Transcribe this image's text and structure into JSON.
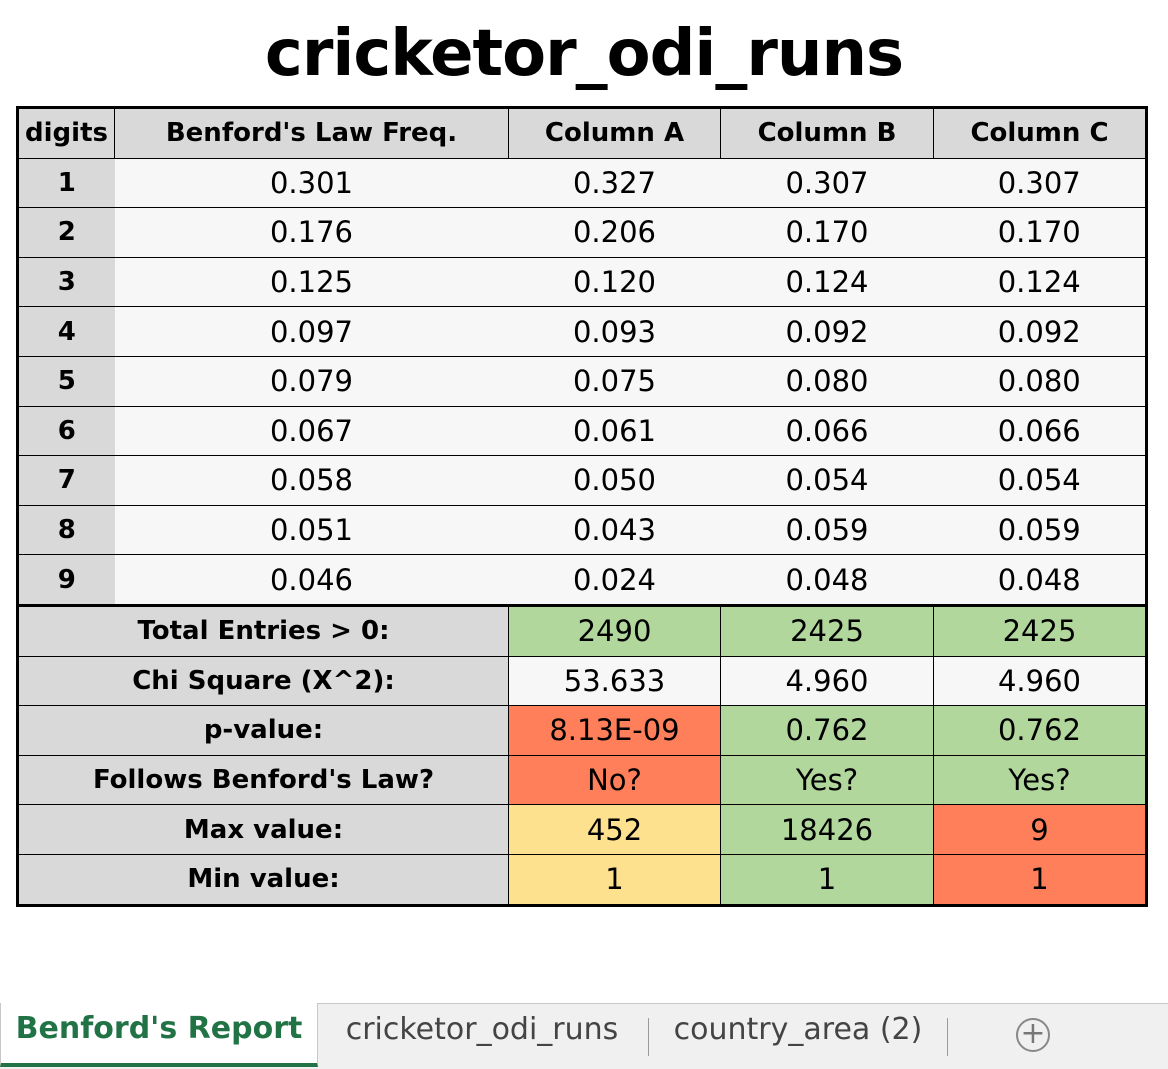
{
  "title": "cricketor_odi_runs",
  "headers": [
    "digits",
    "Benford's Law Freq.",
    "Column A",
    "Column B",
    "Column C"
  ],
  "rows": [
    {
      "digit": "1",
      "benford": "0.301",
      "a": "0.327",
      "b": "0.307",
      "c": "0.307"
    },
    {
      "digit": "2",
      "benford": "0.176",
      "a": "0.206",
      "b": "0.170",
      "c": "0.170"
    },
    {
      "digit": "3",
      "benford": "0.125",
      "a": "0.120",
      "b": "0.124",
      "c": "0.124"
    },
    {
      "digit": "4",
      "benford": "0.097",
      "a": "0.093",
      "b": "0.092",
      "c": "0.092"
    },
    {
      "digit": "5",
      "benford": "0.079",
      "a": "0.075",
      "b": "0.080",
      "c": "0.080"
    },
    {
      "digit": "6",
      "benford": "0.067",
      "a": "0.061",
      "b": "0.066",
      "c": "0.066"
    },
    {
      "digit": "7",
      "benford": "0.058",
      "a": "0.050",
      "b": "0.054",
      "c": "0.054"
    },
    {
      "digit": "8",
      "benford": "0.051",
      "a": "0.043",
      "b": "0.059",
      "c": "0.059"
    },
    {
      "digit": "9",
      "benford": "0.046",
      "a": "0.024",
      "b": "0.048",
      "c": "0.048"
    }
  ],
  "summary": [
    {
      "label": "Total Entries > 0:",
      "a": "2490",
      "b": "2425",
      "c": "2425",
      "colors": [
        "#b1d79d",
        "#b1d79d",
        "#b1d79d"
      ]
    },
    {
      "label": "Chi Square (X^2):",
      "a": "53.633",
      "b": "4.960",
      "c": "4.960",
      "colors": [
        "#f7f7f7",
        "#f7f7f7",
        "#f7f7f7"
      ]
    },
    {
      "label": "p-value:",
      "a": "8.13E-09",
      "b": "0.762",
      "c": "0.762",
      "colors": [
        "#fe7f5a",
        "#b1d79d",
        "#b1d79d"
      ]
    },
    {
      "label": "Follows Benford's Law?",
      "a": "No?",
      "b": "Yes?",
      "c": "Yes?",
      "colors": [
        "#fe7f5a",
        "#b1d79d",
        "#b1d79d"
      ]
    },
    {
      "label": "Max value:",
      "a": "452",
      "b": "18426",
      "c": "9",
      "colors": [
        "#fde18f",
        "#b1d79d",
        "#fe7f5a"
      ]
    },
    {
      "label": "Min value:",
      "a": "1",
      "b": "1",
      "c": "1",
      "colors": [
        "#fde18f",
        "#b1d79d",
        "#fe7f5a"
      ]
    }
  ],
  "tabs": [
    {
      "label": "Benford's Report",
      "active": true
    },
    {
      "label": "cricketor_odi_runs",
      "active": false
    },
    {
      "label": "country_area (2)",
      "active": false
    }
  ],
  "add_sheet_icon": "plus-circle-icon",
  "add_sheet_symbol": "+"
}
